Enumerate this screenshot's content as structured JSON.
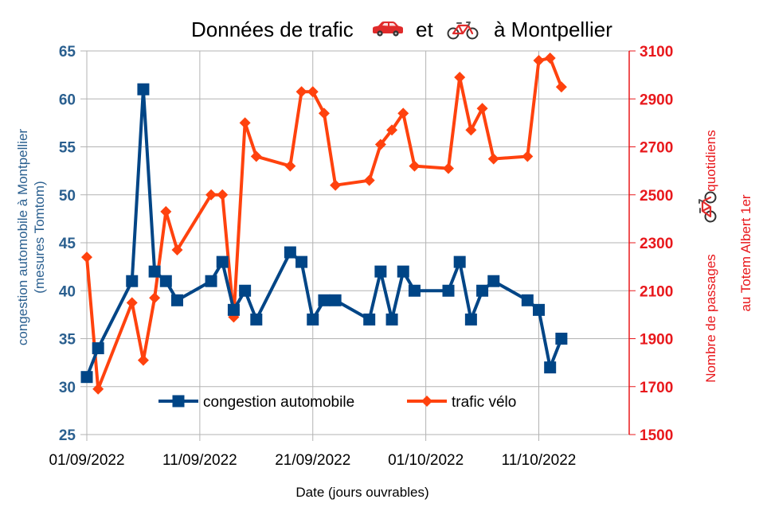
{
  "chart_data": {
    "type": "line",
    "title": "Données de trafic 🚗 et 🚲 à Montpellier",
    "title_parts": {
      "lead": "Données de trafic",
      "car_icon": "car-icon",
      "mid": "et",
      "bike_icon": "bicycle-icon",
      "tail": "à Montpellier"
    },
    "xlabel": "Date (jours ouvrables)",
    "ylabel_left": [
      "congestion automobile à Montpellier",
      "(mesures Tomtom)"
    ],
    "ylabel_right": [
      "Nombre de passages",
      "quotidiens",
      "au Totem Albert 1er"
    ],
    "ylim_left": [
      25,
      65
    ],
    "ylim_right": [
      1500,
      3100
    ],
    "yticks_left": [
      "25",
      "30",
      "35",
      "40",
      "45",
      "50",
      "55",
      "60",
      "65"
    ],
    "yticks_right": [
      "1500",
      "1700",
      "1900",
      "2100",
      "2300",
      "2500",
      "2700",
      "2900",
      "3100"
    ],
    "x_range": [
      0,
      48
    ],
    "xtick_positions": [
      0,
      10,
      20,
      30,
      40
    ],
    "xticks": [
      "01/09/2022",
      "11/09/2022",
      "21/09/2022",
      "01/10/2022",
      "11/10/2022"
    ],
    "grid": true,
    "legend_position": "bottom-center",
    "colors": {
      "congestion": "#004586",
      "velo": "#ff420e",
      "left_axis": "#2a5f8f",
      "right_axis": "#e8181c",
      "grid": "#b3b3b3"
    },
    "series": [
      {
        "name": "congestion automobile",
        "axis": "left",
        "marker": "square",
        "x": [
          0,
          1,
          4,
          5,
          6,
          7,
          8,
          11,
          12,
          13,
          14,
          15,
          18,
          19,
          20,
          21,
          22,
          25,
          26,
          27,
          28,
          29,
          32,
          33,
          34,
          35,
          36,
          39,
          40,
          41,
          42
        ],
        "values": [
          31,
          34,
          41,
          61,
          42,
          41,
          39,
          41,
          43,
          38,
          40,
          37,
          44,
          43,
          37,
          39,
          39,
          37,
          42,
          37,
          42,
          40,
          40,
          43,
          37,
          40,
          41,
          39,
          38,
          32,
          35
        ]
      },
      {
        "name": "trafic vélo",
        "axis": "right",
        "marker": "diamond",
        "x": [
          0,
          1,
          4,
          5,
          6,
          7,
          8,
          11,
          12,
          13,
          14,
          15,
          18,
          19,
          20,
          21,
          22,
          25,
          26,
          27,
          28,
          29,
          32,
          33,
          34,
          35,
          36,
          39,
          40,
          41,
          42
        ],
        "values": [
          2240,
          1690,
          2050,
          1810,
          2070,
          2430,
          2270,
          2500,
          2500,
          1990,
          2800,
          2660,
          2620,
          2930,
          2930,
          2840,
          2540,
          2560,
          2710,
          2770,
          2840,
          2620,
          2610,
          2990,
          2770,
          2860,
          2650,
          2660,
          3060,
          3070,
          2950
        ]
      }
    ]
  }
}
